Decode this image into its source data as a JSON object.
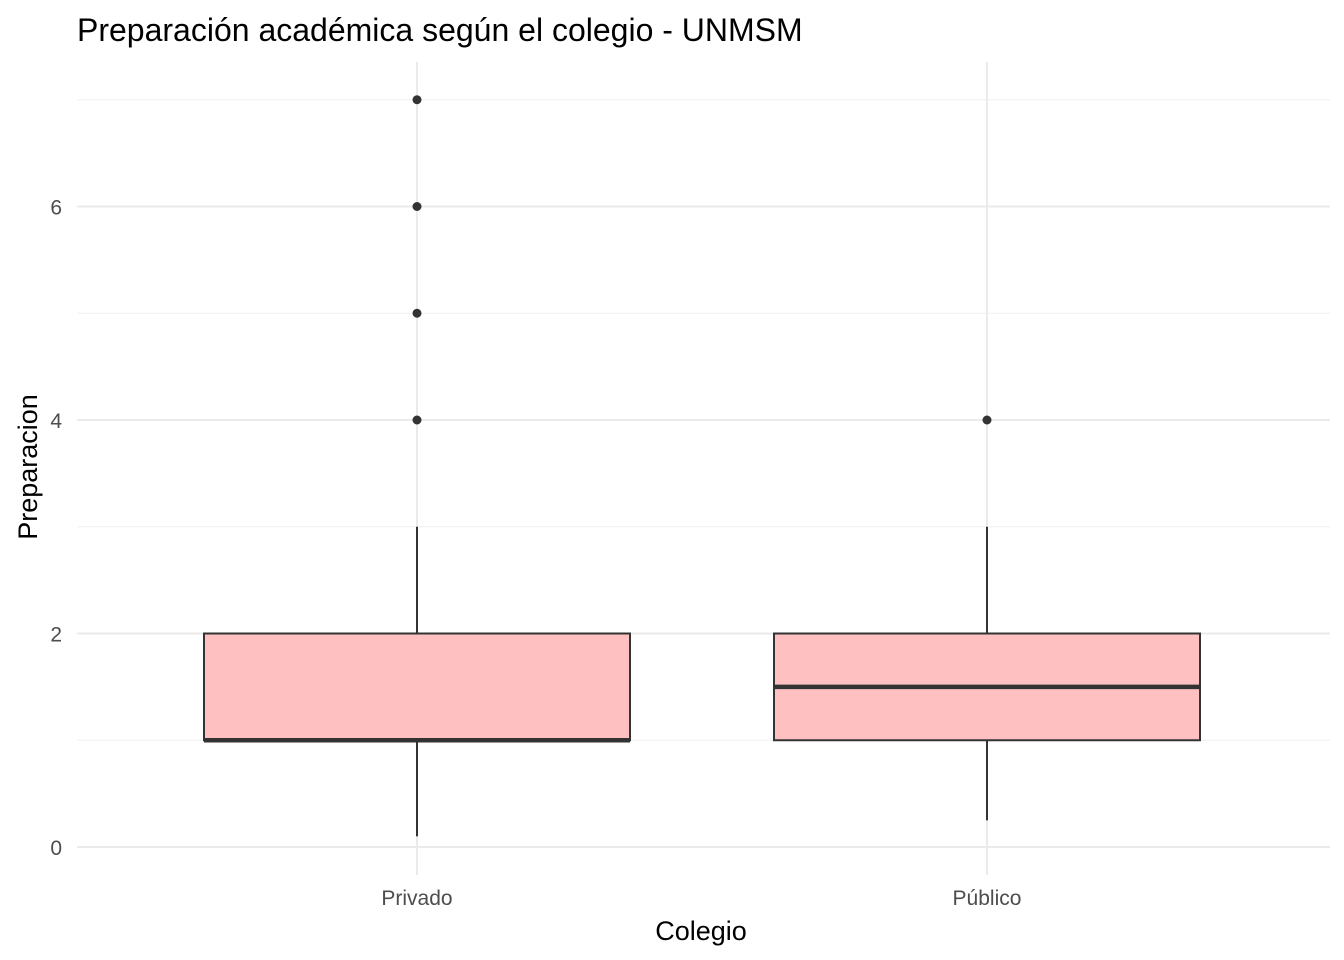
{
  "chart_data": {
    "type": "boxplot",
    "title": "Preparación académica según el colegio - UNMSM",
    "xlabel": "Colegio",
    "ylabel": "Preparacion",
    "ylim": [
      -0.3,
      7.2
    ],
    "yticks": [
      0,
      2,
      4,
      6
    ],
    "grid": true,
    "legend": "none",
    "fill_color": "#ffc0c2",
    "line_color": "#333333",
    "categories": [
      "Privado",
      "Público"
    ],
    "boxes": [
      {
        "category": "Privado",
        "whisker_low": 0.1,
        "q1": 1,
        "median": 1,
        "q3": 2,
        "whisker_high": 3,
        "outliers": [
          4,
          5,
          6,
          7
        ]
      },
      {
        "category": "Público",
        "whisker_low": 0.25,
        "q1": 1,
        "median": 1.5,
        "q3": 2,
        "whisker_high": 3,
        "outliers": [
          4
        ]
      }
    ]
  }
}
